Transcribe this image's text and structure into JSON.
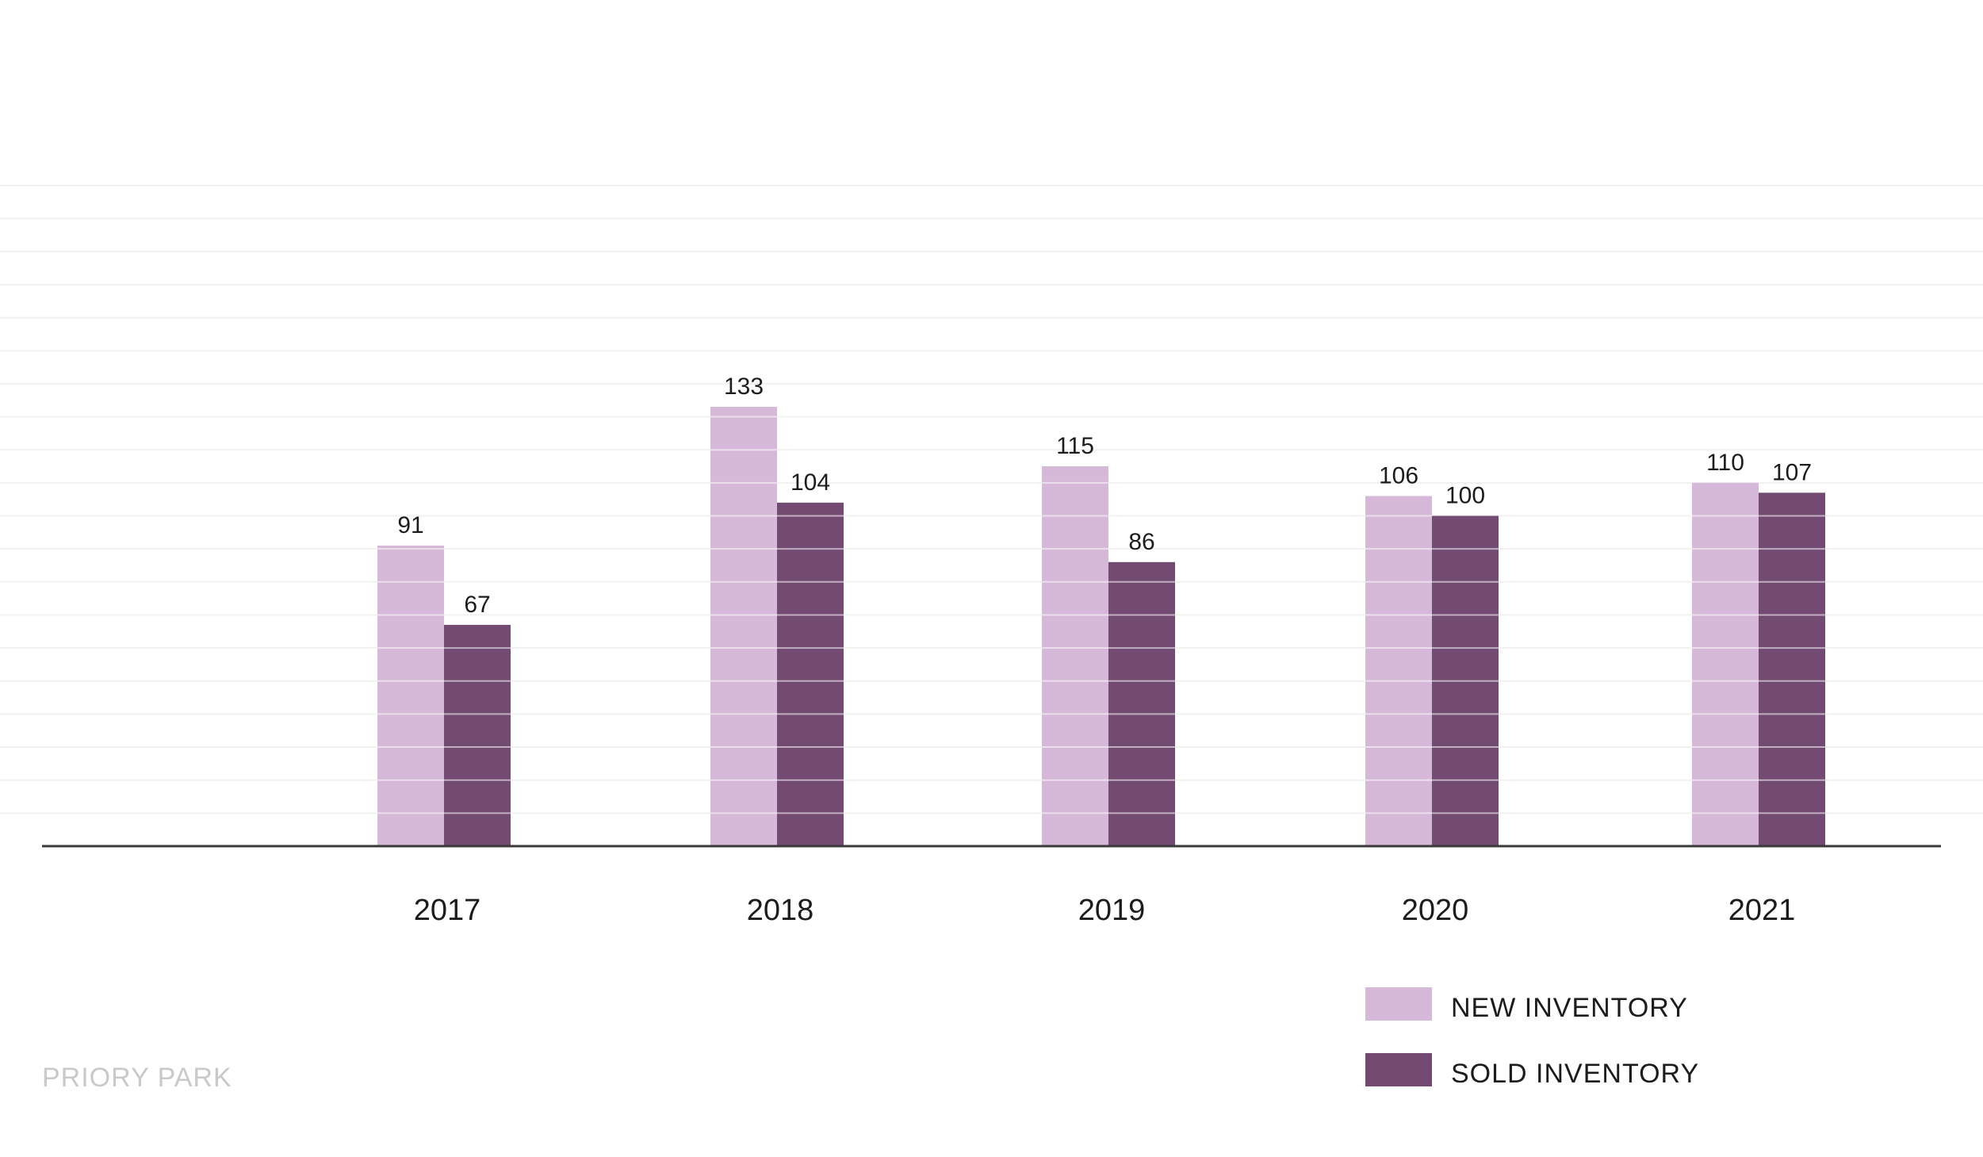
{
  "chart_data": {
    "type": "bar",
    "categories": [
      "2017",
      "2018",
      "2019",
      "2020",
      "2021"
    ],
    "series": [
      {
        "name": "NEW INVENTORY",
        "values": [
          91,
          133,
          115,
          106,
          110
        ],
        "color": "#d6b8d8"
      },
      {
        "name": "SOLD INVENTORY",
        "values": [
          67,
          104,
          86,
          100,
          107
        ],
        "color": "#734a72"
      }
    ],
    "ylim": [
      0,
      200
    ],
    "grid": true,
    "legend_position": "bottom-right",
    "title": "",
    "xlabel": "",
    "ylabel": ""
  },
  "footer": {
    "text": "PRIORY PARK"
  }
}
